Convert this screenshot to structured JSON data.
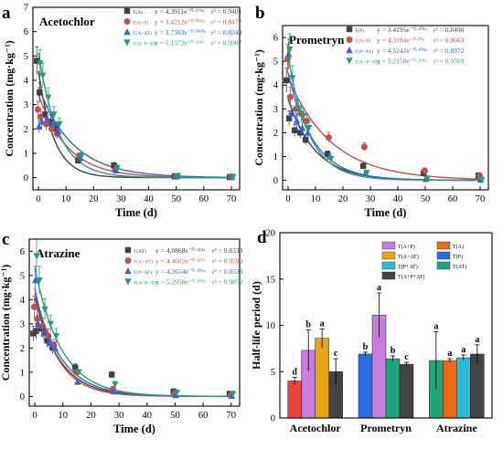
{
  "chart_data": [
    {
      "panel_letter": "a",
      "title": "Acetochlor",
      "type": "scatter",
      "xlabel": "Time (d)",
      "ylabel": "Concentration (mg·kg⁻¹)",
      "xlim": [
        -2,
        73
      ],
      "ylim": [
        -0.5,
        7
      ],
      "xticks": [
        0,
        10,
        20,
        30,
        40,
        50,
        60,
        70
      ],
      "yticks": [
        0,
        1,
        2,
        3,
        4,
        5,
        6,
        7
      ],
      "x": [
        0,
        1,
        3,
        5,
        7,
        15,
        28,
        50,
        70
      ],
      "series": [
        {
          "name": "T(A)",
          "color": "#404040",
          "marker": "square",
          "equation": "y = 4.3911e⁻⁰·¹⁷⁹ˣ",
          "r2": "r² = 0.9401",
          "values": [
            4.8,
            3.5,
            2.6,
            2.3,
            2.0,
            0.7,
            0.5,
            0.05,
            0.02
          ],
          "fit": {
            "a": 4.3911,
            "k": 0.179
          }
        },
        {
          "name": "T(A+P)",
          "color": "#c0504d",
          "marker": "circle",
          "equation": "y = 3.4212e⁻⁰·⁰⁹⁵ˣ",
          "r2": "r² = 0.8477",
          "values": [
            2.8,
            2.5,
            2.2,
            2.0,
            1.8,
            0.9,
            0.3,
            0.05,
            0.03
          ],
          "fit": {
            "a": 3.4212,
            "k": 0.095
          }
        },
        {
          "name": "T(A+AT)",
          "color": "#3c5fd4",
          "marker": "triangle-up",
          "equation": "y = 3.7303e⁻⁰·⁰⁸⁰ˣ",
          "r2": "r² = 0.8344",
          "values": [
            2.1,
            2.3,
            2.4,
            2.2,
            1.9,
            0.8,
            0.3,
            0.06,
            0.03
          ],
          "fit": {
            "a": 3.7303,
            "k": 0.08
          }
        },
        {
          "name": "T(A+P+AT)",
          "color": "#2a9a7a",
          "marker": "triangle-down",
          "equation": "y = 5.1372e⁻⁰·¹³⁹ˣ",
          "r2": "r² = 0.9907",
          "values": [
            4.7,
            4.2,
            3.3,
            2.6,
            2.2,
            0.9,
            0.4,
            0.06,
            0.02
          ],
          "fit": {
            "a": 5.1372,
            "k": 0.139
          }
        }
      ]
    },
    {
      "panel_letter": "b",
      "title": "Prometryn",
      "type": "scatter",
      "xlabel": "Time (d)",
      "ylabel": "Concentration (mg·kg⁻¹)",
      "xlim": [
        -2,
        73
      ],
      "ylim": [
        -0.4,
        6.5
      ],
      "xticks": [
        0,
        10,
        20,
        30,
        40,
        50,
        60,
        70
      ],
      "yticks": [
        0,
        1,
        2,
        3,
        4,
        5,
        6
      ],
      "x": [
        0,
        1,
        3,
        5,
        7,
        15,
        28,
        50,
        70
      ],
      "series": [
        {
          "name": "T(P)",
          "color": "#404040",
          "marker": "square",
          "equation": "y = 3.4195e⁻⁰·¹⁰¹ˣ",
          "r2": "r² = 0.8490",
          "values": [
            4.2,
            2.6,
            2.1,
            2.0,
            1.7,
            1.1,
            0.6,
            0.3,
            0.2
          ],
          "fit": {
            "a": 3.4195,
            "k": 0.101
          }
        },
        {
          "name": "T(A+P)",
          "color": "#c0504d",
          "marker": "circle",
          "equation": "y = 4.3184e⁻⁰·⁰⁦³ˣ",
          "r2": "r² = 0.8663",
          "values": [
            5.1,
            3.5,
            3.0,
            2.8,
            2.5,
            1.8,
            1.4,
            0.4,
            0.2
          ],
          "fit": {
            "a": 4.3184,
            "k": 0.063
          }
        },
        {
          "name": "T(P+AT)",
          "color": "#3c5fd4",
          "marker": "triangle-up",
          "equation": "y = 4.5242e⁻⁰·¹⁰⁸ˣ",
          "r2": "r² = 0.8972",
          "values": [
            5.3,
            2.8,
            2.5,
            2.2,
            2.0,
            1.0,
            0.3,
            0.05,
            0.02
          ],
          "fit": {
            "a": 4.5242,
            "k": 0.108
          }
        },
        {
          "name": "T(A+P+AT)",
          "color": "#2a9a7a",
          "marker": "triangle-down",
          "equation": "y = 5.2158e⁻⁰·¹²⁹ˣ",
          "r2": "r² = 0.9769",
          "values": [
            5.5,
            4.3,
            3.0,
            2.7,
            2.2,
            0.9,
            0.3,
            0.05,
            0.02
          ],
          "fit": {
            "a": 5.2158,
            "k": 0.129
          }
        }
      ]
    },
    {
      "panel_letter": "c",
      "title": "Atrazine",
      "type": "scatter",
      "xlabel": "Time (d)",
      "ylabel": "Concentration (mg·kg⁻¹)",
      "xlim": [
        -2,
        73
      ],
      "ylim": [
        -0.4,
        6.5
      ],
      "xticks": [
        0,
        10,
        20,
        30,
        40,
        50,
        60,
        70
      ],
      "yticks": [
        0,
        1,
        2,
        3,
        4,
        5,
        6
      ],
      "x": [
        0,
        1,
        3,
        5,
        7,
        15,
        28,
        50,
        70
      ],
      "series": [
        {
          "name": "T(AT)",
          "color": "#404040",
          "marker": "square",
          "equation": "y = 4.0868e⁻⁰·¹¹³ˣ",
          "r2": "r² = 0.8333",
          "values": [
            2.6,
            2.7,
            2.8,
            2.3,
            2.0,
            1.2,
            0.9,
            0.2,
            0.1
          ],
          "fit": {
            "a": 4.0868,
            "k": 0.113
          }
        },
        {
          "name": "T(A+AT)",
          "color": "#c0504d",
          "marker": "circle",
          "equation": "y = 4.4602e⁻⁰·¹²⁷ˣ",
          "r2": "r² = 0.9596",
          "values": [
            3.7,
            3.2,
            2.9,
            2.5,
            2.1,
            1.0,
            0.3,
            0.1,
            0.05
          ],
          "fit": {
            "a": 4.4602,
            "k": 0.127
          }
        },
        {
          "name": "T(P+AT)",
          "color": "#3c5fd4",
          "marker": "triangle-up",
          "equation": "y = 4.2654e⁻⁰·¹⁰⁶ˣ",
          "r2": "r² = 0.8538",
          "values": [
            4.8,
            3.0,
            2.6,
            2.2,
            2.0,
            0.6,
            0.2,
            0.05,
            0.02
          ],
          "fit": {
            "a": 4.2654,
            "k": 0.106
          }
        },
        {
          "name": "T(A+P+AT)",
          "color": "#2a9a7a",
          "marker": "triangle-down",
          "equation": "y = 5.2958e⁻⁰·¹⁰⁵ˣ",
          "r2": "r² = 0.9852",
          "values": [
            5.8,
            4.8,
            3.6,
            3.0,
            2.5,
            1.0,
            0.5,
            0.15,
            0.1
          ],
          "fit": {
            "a": 5.2958,
            "k": 0.105
          }
        }
      ]
    },
    {
      "panel_letter": "d",
      "type": "bar",
      "ylabel": "Half-life period (d)",
      "ylim": [
        0,
        20
      ],
      "yticks": [
        0,
        5,
        10,
        15,
        20
      ],
      "categories": [
        "Acetochlor",
        "Prometryn",
        "Atrazine"
      ],
      "groups": [
        {
          "category": "Acetochlor",
          "bars": [
            {
              "label": "T(A)",
              "value": 4.0,
              "err": 0.4,
              "color": "#e8453c",
              "letter": "d"
            },
            {
              "label": "T(A+P)",
              "value": 7.3,
              "err": 2.2,
              "color": "#c77ddb",
              "letter": "b"
            },
            {
              "label": "T(A+AT)",
              "value": 8.6,
              "err": 1.0,
              "color": "#e8a416",
              "letter": "a"
            },
            {
              "label": "T(A+P+AT)",
              "value": 5.0,
              "err": 1.4,
              "color": "#444444",
              "letter": "c"
            }
          ]
        },
        {
          "category": "Prometryn",
          "bars": [
            {
              "label": "T(P)",
              "value": 6.9,
              "err": 0.2,
              "color": "#2f6be0",
              "letter": "b"
            },
            {
              "label": "T(A+P)",
              "value": 11.1,
              "err": 2.4,
              "color": "#c77ddb",
              "letter": "a"
            },
            {
              "label": "T(P+AT)",
              "value": 6.4,
              "err": 0.3,
              "color": "#22a47a",
              "letter": "b"
            },
            {
              "label": "T(A+P+AT)",
              "value": 5.8,
              "err": 0.2,
              "color": "#444444",
              "letter": "c"
            }
          ]
        },
        {
          "category": "Atrazine",
          "bars": [
            {
              "label": "T(AT)",
              "value": 6.2,
              "err": 3.1,
              "color": "#22a47a",
              "letter": "a"
            },
            {
              "label": "T(A+AT)",
              "value": 6.2,
              "err": 0.2,
              "color": "#e86a1a",
              "letter": "a"
            },
            {
              "label": "T(P+AT)",
              "value": 6.5,
              "err": 0.3,
              "color": "#31b9d9",
              "letter": "a"
            },
            {
              "label": "T(A+P+AT)",
              "value": 6.9,
              "err": 1.0,
              "color": "#444444",
              "letter": "a"
            }
          ]
        }
      ],
      "legend": [
        {
          "label": "T(A+P)",
          "color": "#c77ddb"
        },
        {
          "label": "T(A)",
          "color": "#e86a1a"
        },
        {
          "label": "T(A+AT)",
          "color": "#e8a416"
        },
        {
          "label": "T(P)",
          "color": "#2f6be0"
        },
        {
          "label": "T(P+AT)",
          "color": "#31b9d9"
        },
        {
          "label": "T(AT)",
          "color": "#22a47a"
        },
        {
          "label": "T(A+P+AT)",
          "color": "#444444"
        }
      ]
    }
  ]
}
